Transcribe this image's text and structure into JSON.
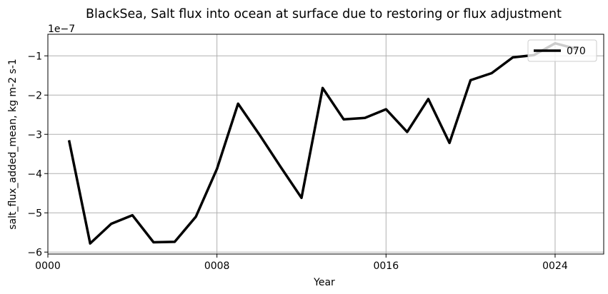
{
  "chart_data": {
    "type": "line",
    "title": "BlackSea, Salt flux into ocean at surface due to restoring or flux adjustment",
    "xlabel": "Year",
    "ylabel": "salt_flux_added_mean, kg m-2 s-1",
    "y_offset_label": "1e−7",
    "y_scale": 1e-07,
    "xlim": [
      0,
      26.3
    ],
    "ylim": [
      -6.05e-07,
      -4.5e-08
    ],
    "xticks": [
      {
        "value": 0,
        "label": "0000"
      },
      {
        "value": 8,
        "label": "0008"
      },
      {
        "value": 16,
        "label": "0016"
      },
      {
        "value": 24,
        "label": "0024"
      }
    ],
    "yticks": [
      {
        "value": -6e-07,
        "label": "−6"
      },
      {
        "value": -5e-07,
        "label": "−5"
      },
      {
        "value": -4e-07,
        "label": "−4"
      },
      {
        "value": -3e-07,
        "label": "−3"
      },
      {
        "value": -2e-07,
        "label": "−2"
      },
      {
        "value": -1e-07,
        "label": "−1"
      }
    ],
    "grid": true,
    "legend_position": "top-right",
    "series": [
      {
        "name": "070",
        "color": "#000000",
        "x": [
          1,
          2,
          3,
          4,
          5,
          6,
          7,
          8,
          9,
          10,
          11,
          12,
          13,
          14,
          15,
          16,
          17,
          18,
          19,
          20,
          21,
          22,
          23,
          24,
          25
        ],
        "y": [
          -3.15e-07,
          -5.78e-07,
          -5.28e-07,
          -5.06e-07,
          -5.75e-07,
          -5.74e-07,
          -5.1e-07,
          -3.88e-07,
          -2.22e-07,
          -3e-07,
          -3.82e-07,
          -4.62e-07,
          -1.82e-07,
          -2.62e-07,
          -2.58e-07,
          -2.36e-07,
          -2.94e-07,
          -2.1e-07,
          -3.22e-07,
          -1.62e-07,
          -1.44e-07,
          -1.04e-07,
          -9.8e-08,
          -6.8e-08,
          -8.2e-08
        ]
      }
    ]
  }
}
